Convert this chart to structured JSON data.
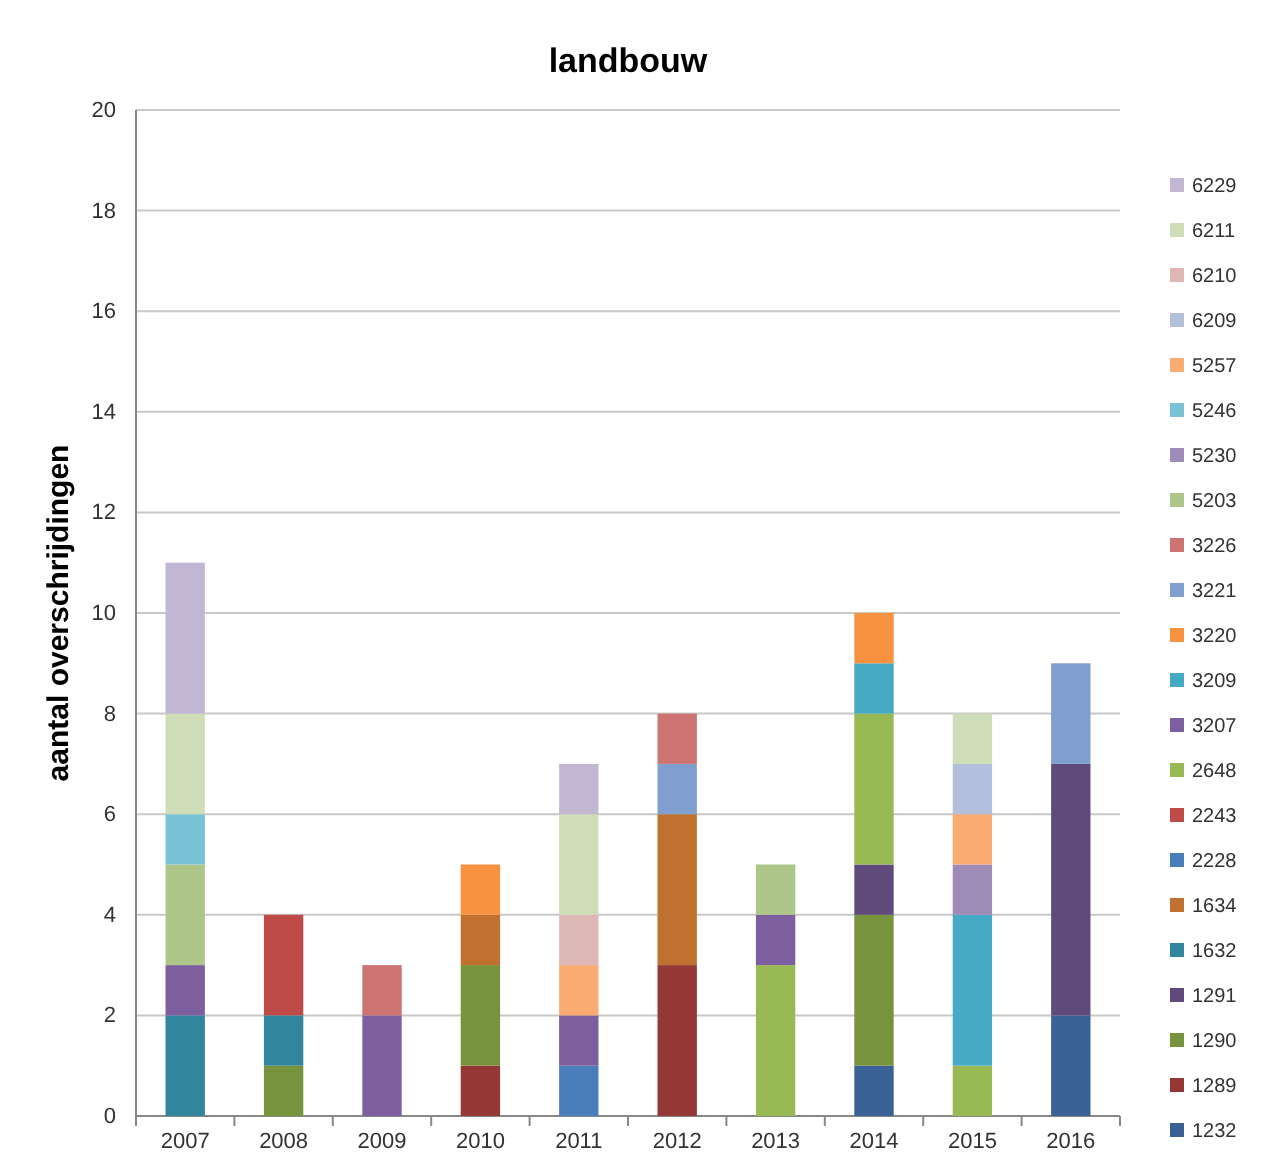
{
  "chart_data": {
    "type": "bar",
    "title": "landbouw",
    "ylabel": "aantal overschrijdingen",
    "stacked": true,
    "grid": "y",
    "legend": "right",
    "categories": [
      "2007",
      "2008",
      "2009",
      "2010",
      "2011",
      "2012",
      "2013",
      "2014",
      "2015",
      "2016"
    ],
    "ylim": [
      0,
      20
    ],
    "yticks": [
      0,
      2,
      4,
      6,
      8,
      10,
      12,
      14,
      16,
      18,
      20
    ],
    "series": [
      {
        "name": "1232",
        "color": "#3a6196",
        "values": [
          null,
          null,
          null,
          null,
          null,
          null,
          null,
          1,
          null,
          2
        ]
      },
      {
        "name": "1289",
        "color": "#953735",
        "values": [
          null,
          null,
          null,
          1,
          null,
          3,
          null,
          null,
          null,
          null
        ]
      },
      {
        "name": "1290",
        "color": "#77933c",
        "values": [
          null,
          1,
          null,
          2,
          null,
          null,
          null,
          3,
          null,
          null
        ]
      },
      {
        "name": "1291",
        "color": "#604a7b",
        "values": [
          null,
          null,
          null,
          null,
          null,
          null,
          null,
          1,
          null,
          5
        ]
      },
      {
        "name": "1632",
        "color": "#31859c",
        "values": [
          2,
          1,
          null,
          null,
          null,
          null,
          null,
          null,
          null,
          null
        ]
      },
      {
        "name": "1634",
        "color": "#c0712f",
        "values": [
          null,
          null,
          null,
          1,
          null,
          3,
          null,
          null,
          null,
          null
        ]
      },
      {
        "name": "2228",
        "color": "#4a7ebb",
        "values": [
          null,
          null,
          null,
          null,
          1,
          null,
          null,
          null,
          null,
          null
        ]
      },
      {
        "name": "2243",
        "color": "#be4b48",
        "values": [
          null,
          2,
          null,
          null,
          null,
          null,
          null,
          null,
          null,
          null
        ]
      },
      {
        "name": "2648",
        "color": "#98b954",
        "values": [
          null,
          null,
          null,
          null,
          null,
          null,
          3,
          3,
          1,
          null
        ]
      },
      {
        "name": "3207",
        "color": "#7d5fa0",
        "values": [
          1,
          null,
          2,
          null,
          1,
          null,
          1,
          null,
          null,
          null
        ]
      },
      {
        "name": "3209",
        "color": "#46aac5",
        "values": [
          null,
          null,
          null,
          null,
          null,
          null,
          null,
          1,
          3,
          null
        ]
      },
      {
        "name": "3220",
        "color": "#f69240",
        "values": [
          null,
          null,
          null,
          1,
          null,
          null,
          null,
          1,
          null,
          null
        ]
      },
      {
        "name": "3221",
        "color": "#7f9fcf",
        "values": [
          null,
          null,
          null,
          null,
          null,
          1,
          null,
          null,
          null,
          2
        ]
      },
      {
        "name": "3226",
        "color": "#cd7371",
        "values": [
          null,
          null,
          1,
          null,
          null,
          1,
          null,
          null,
          null,
          null
        ]
      },
      {
        "name": "5203",
        "color": "#aec689",
        "values": [
          2,
          null,
          null,
          null,
          null,
          null,
          1,
          null,
          null,
          null
        ]
      },
      {
        "name": "5230",
        "color": "#9e8bb8",
        "values": [
          null,
          null,
          null,
          null,
          null,
          null,
          null,
          null,
          1,
          null
        ]
      },
      {
        "name": "5246",
        "color": "#79c1d5",
        "values": [
          1,
          null,
          null,
          null,
          null,
          null,
          null,
          null,
          null,
          null
        ]
      },
      {
        "name": "5257",
        "color": "#f9ab72",
        "values": [
          null,
          null,
          null,
          null,
          1,
          null,
          null,
          null,
          1,
          null
        ]
      },
      {
        "name": "6209",
        "color": "#b2c0dd",
        "values": [
          null,
          null,
          null,
          null,
          null,
          null,
          null,
          null,
          1,
          null
        ]
      },
      {
        "name": "6210",
        "color": "#ddb6b5",
        "values": [
          null,
          null,
          null,
          null,
          1,
          null,
          null,
          null,
          null,
          null
        ]
      },
      {
        "name": "6211",
        "color": "#cfdcb8",
        "values": [
          2,
          null,
          null,
          null,
          2,
          null,
          null,
          null,
          1,
          null
        ]
      },
      {
        "name": "6229",
        "color": "#c2b7d2",
        "values": [
          3,
          null,
          null,
          null,
          1,
          null,
          null,
          null,
          null,
          null
        ]
      }
    ]
  }
}
